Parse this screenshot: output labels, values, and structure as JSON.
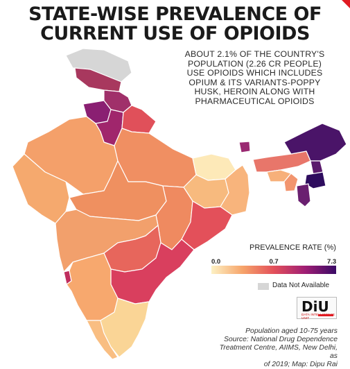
{
  "title": {
    "line1": "STATE-WISE PREVALENCE OF",
    "line2": "CURRENT USE OF OPIOIDS"
  },
  "description": [
    "ABOUT 2.1% OF THE COUNTRY'S",
    "POPULATION (2.26 CR PEOPLE)",
    "USE OPIOIDS WHICH INCLUDES",
    "OPIUM & ITS VARIANTS-POPPY",
    "HUSK, HEROIN ALONG WITH",
    "PHARMACEUTICAL OPIOIDS"
  ],
  "legend": {
    "title": "PREVALENCE RATE (%)",
    "min": "0.0",
    "mid": "0.7",
    "max": "7.3",
    "scale_values": [
      0.0,
      0.7,
      7.3
    ],
    "colors": [
      "#fdf1c4",
      "#f6a46a",
      "#e3505a",
      "#a01e74",
      "#3a0a66"
    ],
    "na_label": "Data Not Available",
    "na_color": "#d6d6d6"
  },
  "logo": {
    "main": "DiU",
    "sub": "DATA INTELLIGENCE UNIT"
  },
  "source": [
    "Population aged 10-75 years",
    "Source: National Drug Dependence",
    "Treatment Centre, AIIMS, New Delhi, as",
    "of 2019; Map: Dipu Rai"
  ],
  "map_colors": {
    "jammu_kashmir": "#d6d6d6",
    "ladakh_west": "#a8385e",
    "himachal": "#a0306a",
    "punjab": "#8a1f72",
    "haryana": "#a0266c",
    "uttarakhand": "#e0505a",
    "rajasthan": "#f4a06a",
    "uttar_pradesh": "#f08f62",
    "bihar": "#fde9b8",
    "jharkhand": "#f7ba7e",
    "west_bengal": "#f8b47c",
    "gujarat": "#f5a96e",
    "madhya_pradesh": "#ef9060",
    "chhattisgarh": "#ef8a60",
    "odisha": "#e3505a",
    "maharashtra": "#f2a06c",
    "telangana": "#e7665c",
    "andhra_pradesh": "#d93f5e",
    "karnataka": "#f7a86e",
    "goa": "#c02e5e",
    "tamil_nadu": "#fad596",
    "kerala": "#f9be82",
    "sikkim": "#9a2a72",
    "arunachal": "#4a1468",
    "assam": "#e8766a",
    "meghalaya": "#f7b07a",
    "nagaland": "#5a1a6c",
    "manipur": "#2e0c5e",
    "mizoram": "#6a2070",
    "tripura": "#f2956e"
  }
}
